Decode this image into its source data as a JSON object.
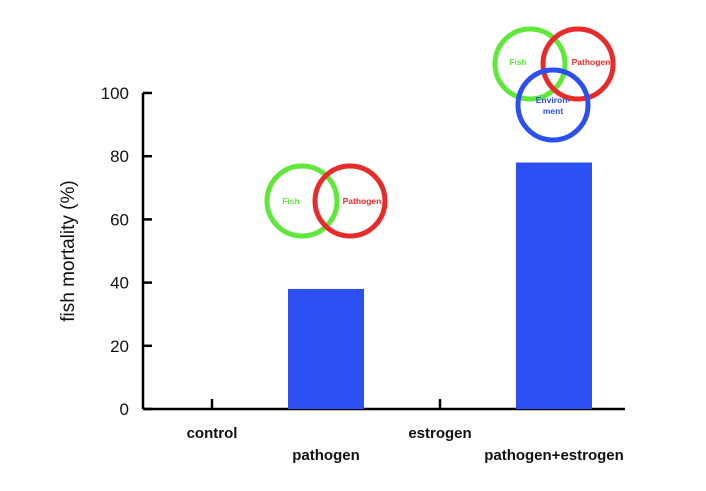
{
  "chart_data": {
    "type": "bar",
    "categories": [
      "control",
      "pathogen",
      "estrogen",
      "pathogen+estrogen"
    ],
    "values": [
      0,
      38,
      0,
      78
    ],
    "xlabel": "",
    "ylabel": "fish mortality (%)",
    "ylim": [
      0,
      100
    ],
    "yticks": [
      0,
      20,
      40,
      60,
      80,
      100
    ],
    "grid": false,
    "bar_color": "#2b4ff0",
    "annotations": [
      {
        "category": "pathogen",
        "type": "venn",
        "circles": [
          {
            "label": "Fish",
            "color": "#5fe83a"
          },
          {
            "label": "Pathogen",
            "color": "#e82a2a"
          }
        ]
      },
      {
        "category": "pathogen+estrogen",
        "type": "venn",
        "circles": [
          {
            "label": "Fish",
            "color": "#5fe83a"
          },
          {
            "label": "Pathogen",
            "color": "#e82a2a"
          },
          {
            "label": "Environ-\nment",
            "color": "#2b4ff0"
          }
        ]
      }
    ]
  }
}
